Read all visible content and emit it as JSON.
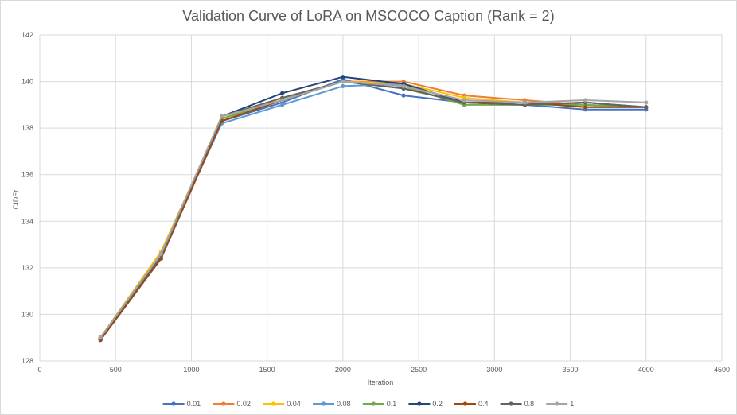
{
  "chart_data": {
    "type": "line",
    "title": "Validation Curve of LoRA on MSCOCO Caption (Rank = 2)",
    "xlabel": "Iteration",
    "ylabel": "CIDEr",
    "xlim": [
      0,
      4500
    ],
    "ylim": [
      128,
      142
    ],
    "xticks": [
      0,
      500,
      1000,
      1500,
      2000,
      2500,
      3000,
      3500,
      4000,
      4500
    ],
    "yticks": [
      128,
      130,
      132,
      134,
      136,
      138,
      140,
      142
    ],
    "grid": true,
    "legend_position": "bottom",
    "x": [
      400,
      800,
      1200,
      1600,
      2000,
      2400,
      2800,
      3200,
      3600,
      4000
    ],
    "series": [
      {
        "name": "0.01",
        "color": "#4472c4",
        "values": [
          129.0,
          132.6,
          138.3,
          139.1,
          140.1,
          139.4,
          139.1,
          139.0,
          138.8,
          138.8
        ]
      },
      {
        "name": "0.02",
        "color": "#ed7d31",
        "values": [
          129.0,
          132.5,
          138.4,
          139.2,
          140.0,
          140.0,
          139.4,
          139.2,
          139.0,
          138.9
        ]
      },
      {
        "name": "0.04",
        "color": "#ffc000",
        "values": [
          129.0,
          132.7,
          138.4,
          139.3,
          140.0,
          139.9,
          139.3,
          139.1,
          138.9,
          138.9
        ]
      },
      {
        "name": "0.08",
        "color": "#5b9bd5",
        "values": [
          129.0,
          132.6,
          138.2,
          139.0,
          139.8,
          139.9,
          139.1,
          139.1,
          138.9,
          138.9
        ]
      },
      {
        "name": "0.1",
        "color": "#70ad47",
        "values": [
          129.0,
          132.6,
          138.4,
          139.2,
          140.0,
          139.8,
          139.0,
          139.0,
          139.0,
          138.9
        ]
      },
      {
        "name": "0.2",
        "color": "#264478",
        "values": [
          128.9,
          132.4,
          138.5,
          139.5,
          140.2,
          139.9,
          139.1,
          139.0,
          139.1,
          138.9
        ]
      },
      {
        "name": "0.4",
        "color": "#9e480e",
        "values": [
          128.9,
          132.4,
          138.3,
          139.2,
          140.0,
          139.7,
          139.1,
          139.1,
          138.9,
          138.9
        ]
      },
      {
        "name": "0.8",
        "color": "#636363",
        "values": [
          129.0,
          132.5,
          138.5,
          139.3,
          140.0,
          139.7,
          139.1,
          139.0,
          139.1,
          138.9
        ]
      },
      {
        "name": "1",
        "color": "#a5a5a5",
        "values": [
          129.0,
          132.6,
          138.5,
          139.2,
          140.0,
          139.8,
          139.2,
          139.1,
          139.2,
          139.1
        ]
      }
    ]
  }
}
